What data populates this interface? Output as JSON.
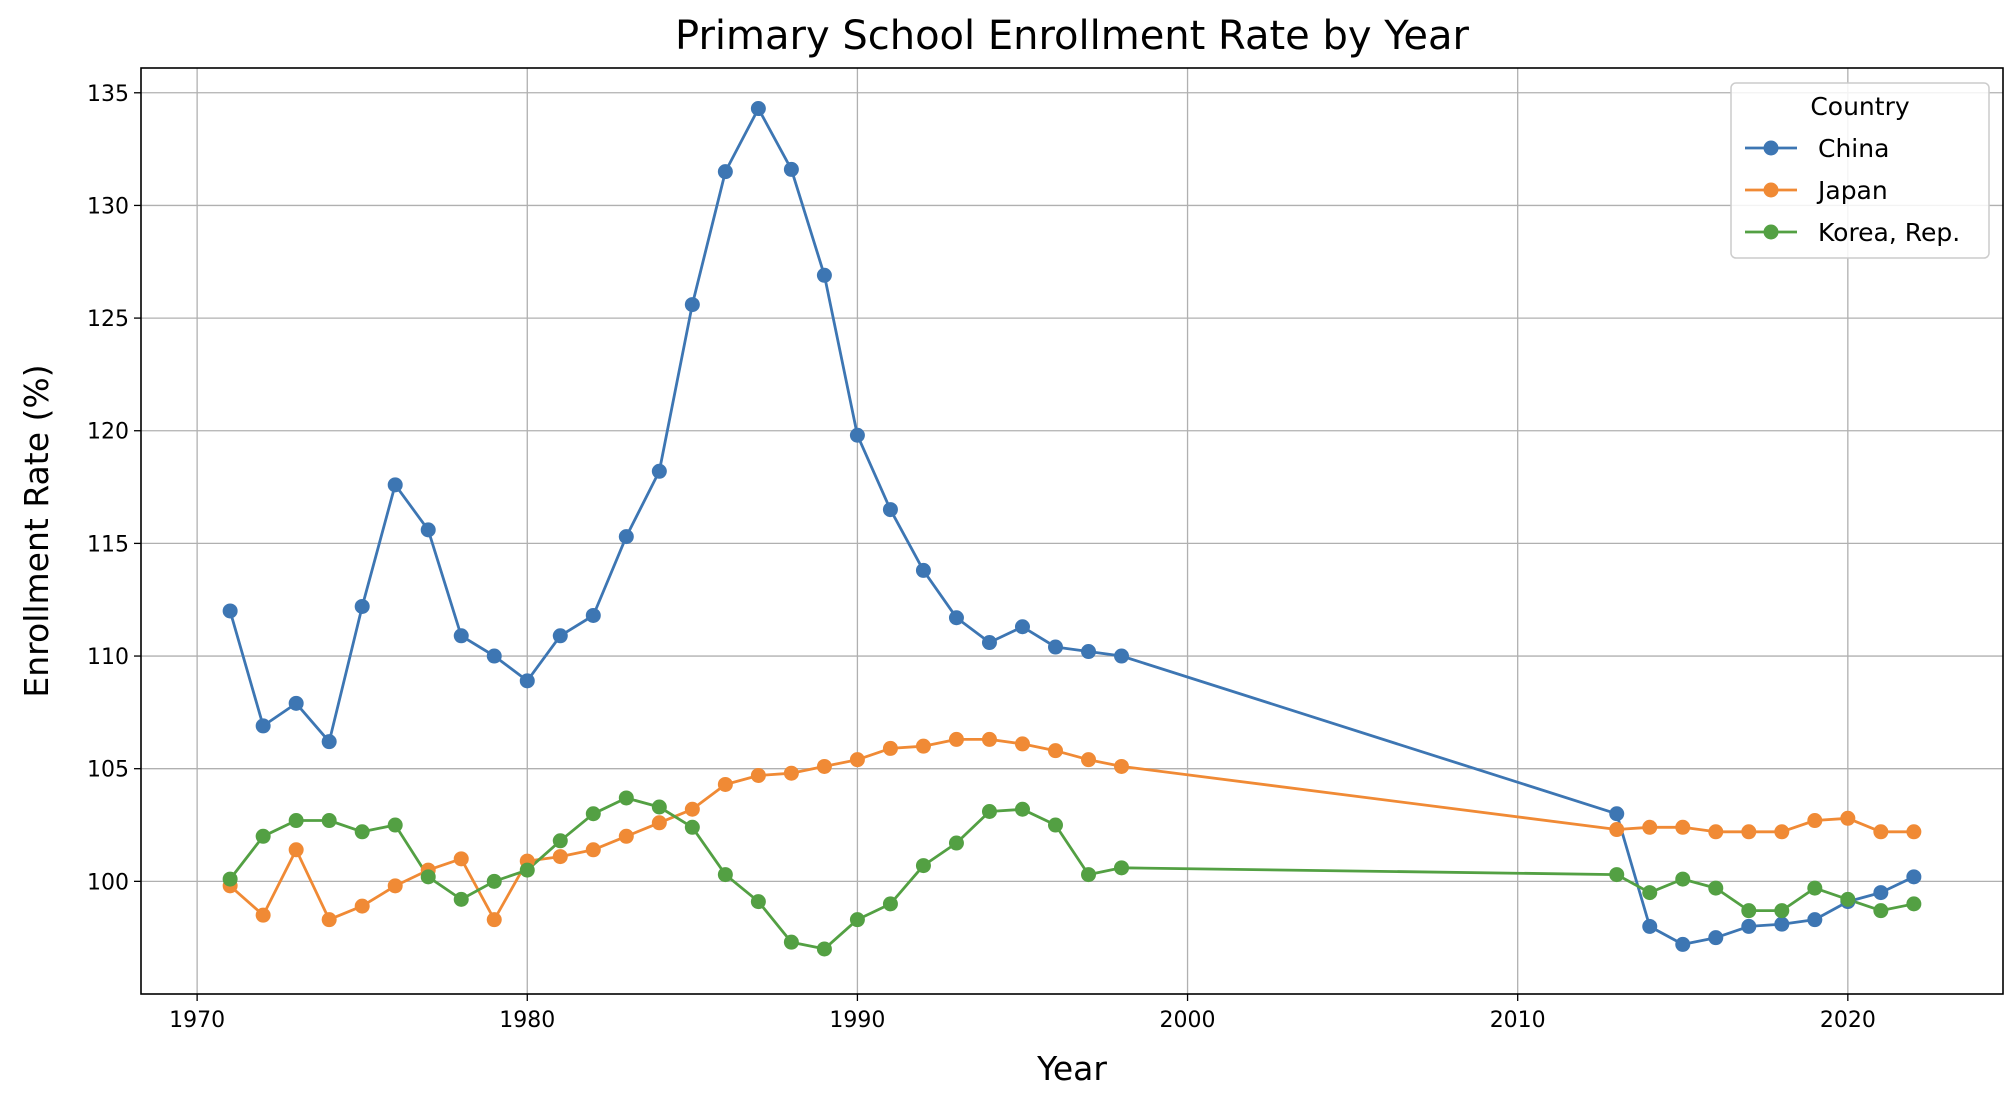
{
  "chart_data": {
    "type": "line",
    "title": "Primary School Enrollment Rate by Year",
    "xlabel": "Year",
    "ylabel": "Enrollment Rate (%)",
    "xlim": [
      1968.3,
      2024.7
    ],
    "ylim": [
      95.0,
      136.1
    ],
    "xticks": [
      1970,
      1980,
      1990,
      2000,
      2010,
      2020
    ],
    "yticks": [
      100,
      105,
      110,
      115,
      120,
      125,
      130,
      135
    ],
    "grid": true,
    "legend": {
      "title": "Country",
      "position": "top-right"
    },
    "series": [
      {
        "name": "China",
        "color": "#3d76b3",
        "x": [
          1971,
          1972,
          1973,
          1974,
          1975,
          1976,
          1977,
          1978,
          1979,
          1980,
          1981,
          1982,
          1983,
          1984,
          1985,
          1986,
          1987,
          1988,
          1989,
          1990,
          1991,
          1992,
          1993,
          1994,
          1995,
          1996,
          1997,
          1998,
          2013,
          2014,
          2015,
          2016,
          2017,
          2018,
          2019,
          2020,
          2021,
          2022
        ],
        "y": [
          112.0,
          106.9,
          107.9,
          106.2,
          112.2,
          117.6,
          115.6,
          110.9,
          110.0,
          108.9,
          110.9,
          111.8,
          115.3,
          118.2,
          125.6,
          131.5,
          134.3,
          131.6,
          126.9,
          119.8,
          116.5,
          113.8,
          111.7,
          110.6,
          111.3,
          110.4,
          110.2,
          110.0,
          103.0,
          98.0,
          97.2,
          97.5,
          98.0,
          98.1,
          98.3,
          99.1,
          99.5,
          100.2
        ]
      },
      {
        "name": "Japan",
        "color": "#f08a35",
        "x": [
          1971,
          1972,
          1973,
          1974,
          1975,
          1976,
          1977,
          1978,
          1979,
          1980,
          1981,
          1982,
          1983,
          1984,
          1985,
          1986,
          1987,
          1988,
          1989,
          1990,
          1991,
          1992,
          1993,
          1994,
          1995,
          1996,
          1997,
          1998,
          2013,
          2014,
          2015,
          2016,
          2017,
          2018,
          2019,
          2020,
          2021,
          2022
        ],
        "y": [
          99.8,
          98.5,
          101.4,
          98.3,
          98.9,
          99.8,
          100.5,
          101.0,
          98.3,
          100.9,
          101.1,
          101.4,
          102.0,
          102.6,
          103.2,
          104.3,
          104.7,
          104.8,
          105.1,
          105.4,
          105.9,
          106.0,
          106.3,
          106.3,
          106.1,
          105.8,
          105.4,
          105.1,
          102.3,
          102.4,
          102.4,
          102.2,
          102.2,
          102.2,
          102.7,
          102.8,
          102.2,
          102.2
        ]
      },
      {
        "name": "Korea, Rep.",
        "color": "#53a043",
        "x": [
          1971,
          1972,
          1973,
          1974,
          1975,
          1976,
          1977,
          1978,
          1979,
          1980,
          1981,
          1982,
          1983,
          1984,
          1985,
          1986,
          1987,
          1988,
          1989,
          1990,
          1991,
          1992,
          1993,
          1994,
          1995,
          1996,
          1997,
          1998,
          2013,
          2014,
          2015,
          2016,
          2017,
          2018,
          2019,
          2020,
          2021,
          2022
        ],
        "y": [
          100.1,
          102.0,
          102.7,
          102.7,
          102.2,
          102.5,
          100.2,
          99.2,
          100.0,
          100.5,
          101.8,
          103.0,
          103.7,
          103.3,
          102.4,
          100.3,
          99.1,
          97.3,
          97.0,
          98.3,
          99.0,
          100.7,
          101.7,
          103.1,
          103.2,
          102.5,
          100.3,
          100.6,
          100.3,
          99.5,
          100.1,
          99.7,
          98.7,
          98.7,
          99.7,
          99.2,
          98.7,
          99.0
        ]
      }
    ]
  }
}
